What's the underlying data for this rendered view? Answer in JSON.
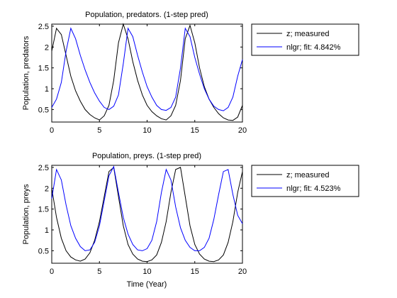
{
  "chart_data": [
    {
      "type": "line",
      "title": "Population, predators. (1-step pred)",
      "xlabel": "",
      "ylabel": "Population, predators",
      "xlim": [
        0,
        20
      ],
      "ylim": [
        0.2,
        2.55
      ],
      "x_ticks": [
        "0",
        "5",
        "10",
        "15",
        "20"
      ],
      "y_ticks": [
        "0.5",
        "1",
        "1.5",
        "2",
        "2.5"
      ],
      "x_tick_values": [
        0,
        5,
        10,
        15,
        20
      ],
      "y_tick_values": [
        0.5,
        1,
        1.5,
        2,
        2.5
      ],
      "grid": false,
      "legend_position": "outside-right",
      "series": [
        {
          "name": "z; measured",
          "color": "#000000",
          "x": [
            0,
            0.5,
            1,
            1.5,
            2,
            2.5,
            3,
            3.5,
            4,
            4.5,
            5,
            5.5,
            6,
            6.5,
            7,
            7.5,
            8,
            8.5,
            9,
            9.5,
            10,
            10.5,
            11,
            11.5,
            12,
            12.5,
            13,
            13.5,
            14,
            14.5,
            15,
            15.5,
            16,
            16.5,
            17,
            17.5,
            18,
            18.5,
            19,
            19.5,
            20
          ],
          "y": [
            1.9,
            2.45,
            2.3,
            1.8,
            1.3,
            0.95,
            0.7,
            0.5,
            0.38,
            0.3,
            0.25,
            0.35,
            0.6,
            1.2,
            2.1,
            2.55,
            2.2,
            1.65,
            1.2,
            0.85,
            0.6,
            0.45,
            0.35,
            0.28,
            0.25,
            0.35,
            0.6,
            1.2,
            2.2,
            2.52,
            2.1,
            1.5,
            1.05,
            0.75,
            0.55,
            0.4,
            0.3,
            0.25,
            0.24,
            0.32,
            0.6
          ]
        },
        {
          "name": "nlgr; fit: 4.842%",
          "color": "#0000ff",
          "x": [
            0,
            0.5,
            1,
            1.5,
            2,
            2.5,
            3,
            3.5,
            4,
            4.5,
            5,
            5.5,
            6,
            6.5,
            7,
            7.5,
            8,
            8.5,
            9,
            9.5,
            10,
            10.5,
            11,
            11.5,
            12,
            12.5,
            13,
            13.5,
            14,
            14.5,
            15,
            15.5,
            16,
            16.5,
            17,
            17.5,
            18,
            18.5,
            19,
            19.5,
            20
          ],
          "y": [
            0.55,
            0.75,
            1.15,
            1.9,
            2.45,
            2.2,
            1.8,
            1.45,
            1.15,
            0.9,
            0.7,
            0.55,
            0.5,
            0.58,
            0.85,
            1.6,
            2.45,
            2.25,
            1.8,
            1.4,
            1.05,
            0.8,
            0.6,
            0.5,
            0.48,
            0.55,
            0.8,
            1.5,
            2.45,
            2.25,
            1.75,
            1.35,
            1.0,
            0.75,
            0.58,
            0.5,
            0.47,
            0.55,
            0.8,
            1.3,
            1.7
          ]
        }
      ]
    },
    {
      "type": "line",
      "title": "Population, preys. (1-step pred)",
      "xlabel": "Time (Year)",
      "ylabel": "Population, preys",
      "xlim": [
        0,
        20
      ],
      "ylim": [
        0.2,
        2.55
      ],
      "x_ticks": [
        "0",
        "5",
        "10",
        "15",
        "20"
      ],
      "y_ticks": [
        "0.5",
        "1",
        "1.5",
        "2",
        "2.5"
      ],
      "x_tick_values": [
        0,
        5,
        10,
        15,
        20
      ],
      "y_tick_values": [
        0.5,
        1,
        1.5,
        2,
        2.5
      ],
      "grid": false,
      "legend_position": "outside-right",
      "series": [
        {
          "name": "z; measured",
          "color": "#000000",
          "x": [
            0,
            0.5,
            1,
            1.5,
            2,
            2.5,
            3,
            3.5,
            4,
            4.5,
            5,
            5.5,
            6,
            6.5,
            7,
            7.5,
            8,
            8.5,
            9,
            9.5,
            10,
            10.5,
            11,
            11.5,
            12,
            12.5,
            13,
            13.5,
            14,
            14.5,
            15,
            15.5,
            16,
            16.5,
            17,
            17.5,
            18,
            18.5,
            19,
            19.5,
            20
          ],
          "y": [
            2.0,
            1.3,
            0.8,
            0.5,
            0.35,
            0.28,
            0.25,
            0.3,
            0.45,
            0.75,
            1.2,
            1.8,
            2.4,
            2.5,
            1.8,
            1.1,
            0.65,
            0.42,
            0.3,
            0.25,
            0.24,
            0.28,
            0.4,
            0.7,
            1.2,
            1.9,
            2.45,
            2.5,
            1.8,
            1.1,
            0.65,
            0.42,
            0.3,
            0.25,
            0.24,
            0.28,
            0.4,
            0.7,
            1.2,
            1.9,
            2.4
          ]
        },
        {
          "name": "nlgr; fit: 4.523%",
          "color": "#0000ff",
          "x": [
            0,
            0.5,
            1,
            1.5,
            2,
            2.5,
            3,
            3.5,
            4,
            4.5,
            5,
            5.5,
            6,
            6.5,
            7,
            7.5,
            8,
            8.5,
            9,
            9.5,
            10,
            10.5,
            11,
            11.5,
            12,
            12.5,
            13,
            13.5,
            14,
            14.5,
            15,
            15.5,
            16,
            16.5,
            17,
            17.5,
            18,
            18.5,
            19,
            19.5,
            20
          ],
          "y": [
            1.75,
            2.45,
            2.2,
            1.6,
            1.1,
            0.8,
            0.6,
            0.5,
            0.52,
            0.7,
            1.1,
            1.7,
            2.3,
            2.52,
            1.9,
            1.3,
            0.9,
            0.65,
            0.52,
            0.5,
            0.55,
            0.75,
            1.2,
            1.9,
            2.45,
            2.2,
            1.55,
            1.05,
            0.75,
            0.58,
            0.5,
            0.5,
            0.58,
            0.8,
            1.25,
            1.85,
            2.4,
            2.45,
            1.85,
            1.35,
            1.15
          ]
        }
      ]
    }
  ]
}
